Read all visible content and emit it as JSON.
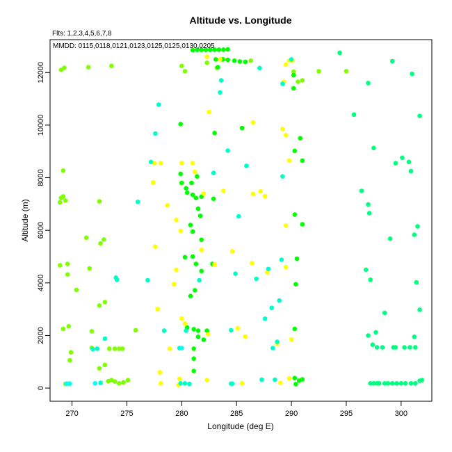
{
  "chart_data": {
    "type": "scatter",
    "title": "Altitude vs. Longitude",
    "xlabel": "Longitude (deg E)",
    "ylabel": "Altitude (m)",
    "xlim": [
      268,
      302.8
    ],
    "ylim": [
      -500,
      13250
    ],
    "xticks": [
      270,
      275,
      280,
      285,
      290,
      295,
      300
    ],
    "yticks": [
      0,
      2000,
      4000,
      6000,
      8000,
      10000,
      12000
    ],
    "grid": false,
    "annotations": [
      "Flts: 1,2,3,4,5,6,7,8",
      "MMDD: 0115,0118,0121,0123,0125,0125,0130,0205"
    ],
    "colors": {
      "yellow": "#FFFF00",
      "lime": "#80FF00",
      "green": "#00FF00",
      "spring": "#00FF80",
      "cyan": "#00FFC8",
      "aqua": "#00FFFF"
    },
    "series": [
      {
        "color": "lime",
        "points": [
          [
            269.0,
            12100
          ],
          [
            269.3,
            12180
          ],
          [
            271.5,
            12200
          ],
          [
            273.6,
            12250
          ],
          [
            269.2,
            8270
          ],
          [
            269.0,
            7230
          ],
          [
            269.2,
            7290
          ],
          [
            268.9,
            7060
          ],
          [
            269.4,
            7130
          ],
          [
            272.5,
            7100
          ],
          [
            271.3,
            5720
          ],
          [
            272.6,
            5500
          ],
          [
            272.9,
            5650
          ],
          [
            268.9,
            4670
          ],
          [
            269.6,
            4720
          ],
          [
            269.6,
            4320
          ],
          [
            270.4,
            3730
          ],
          [
            271.6,
            4550
          ],
          [
            272.5,
            3140
          ],
          [
            273.0,
            3270
          ],
          [
            269.2,
            2250
          ],
          [
            269.7,
            2350
          ],
          [
            271.8,
            2160
          ],
          [
            271.8,
            1530
          ],
          [
            269.9,
            1360
          ],
          [
            269.8,
            1060
          ],
          [
            269.4,
            160
          ],
          [
            269.7,
            170
          ],
          [
            272.5,
            750
          ],
          [
            273.0,
            880
          ],
          [
            273.3,
            260
          ],
          [
            273.6,
            300
          ],
          [
            273.9,
            250
          ],
          [
            274.3,
            180
          ],
          [
            274.7,
            220
          ],
          [
            275.1,
            300
          ],
          [
            273.4,
            1500
          ],
          [
            273.9,
            1500
          ],
          [
            274.3,
            1500
          ],
          [
            274.6,
            1500
          ],
          [
            275.8,
            2200
          ],
          [
            280.0,
            12250
          ],
          [
            280.3,
            12050
          ],
          [
            282.3,
            12370
          ],
          [
            283.8,
            12500
          ],
          [
            283.2,
            12180
          ],
          [
            286.3,
            12450
          ],
          [
            290.2,
            12030
          ],
          [
            290.6,
            11650
          ],
          [
            291.0,
            11700
          ],
          [
            292.5,
            12050
          ],
          [
            295.0,
            12050
          ]
        ]
      },
      {
        "color": "green",
        "points": [
          [
            281.0,
            12850
          ],
          [
            281.4,
            12860
          ],
          [
            281.8,
            12860
          ],
          [
            282.2,
            12860
          ],
          [
            282.6,
            12860
          ],
          [
            283.0,
            12870
          ],
          [
            283.4,
            12870
          ],
          [
            283.8,
            12870
          ],
          [
            284.2,
            12880
          ],
          [
            283.1,
            12500
          ],
          [
            283.7,
            12500
          ],
          [
            284.2,
            12480
          ],
          [
            284.8,
            12450
          ],
          [
            285.3,
            12420
          ],
          [
            285.8,
            12400
          ],
          [
            283.3,
            12200
          ],
          [
            290.2,
            11900
          ],
          [
            290.2,
            11400
          ],
          [
            279.9,
            10040
          ],
          [
            283.0,
            9700
          ],
          [
            285.5,
            9890
          ],
          [
            290.3,
            9020
          ],
          [
            290.8,
            9500
          ],
          [
            291.0,
            8650
          ],
          [
            279.9,
            8150
          ],
          [
            281.4,
            8050
          ],
          [
            280.0,
            7800
          ],
          [
            280.4,
            7600
          ],
          [
            280.9,
            7800
          ],
          [
            280.5,
            7430
          ],
          [
            281.0,
            7350
          ],
          [
            281.3,
            7230
          ],
          [
            281.8,
            7280
          ],
          [
            282.9,
            7200
          ],
          [
            281.5,
            6820
          ],
          [
            281.7,
            6550
          ],
          [
            280.8,
            6200
          ],
          [
            281.0,
            5950
          ],
          [
            281.8,
            5640
          ],
          [
            290.3,
            6600
          ],
          [
            291.0,
            6230
          ],
          [
            280.3,
            4980
          ],
          [
            281.0,
            5000
          ],
          [
            281.3,
            4720
          ],
          [
            281.8,
            4450
          ],
          [
            282.8,
            4720
          ],
          [
            290.4,
            3950
          ],
          [
            290.5,
            4920
          ],
          [
            280.8,
            3500
          ],
          [
            281.2,
            3720
          ],
          [
            280.5,
            2300
          ],
          [
            281.1,
            2240
          ],
          [
            281.5,
            2180
          ],
          [
            282.3,
            2180
          ],
          [
            281.5,
            1950
          ],
          [
            282.0,
            1840
          ],
          [
            281.1,
            1500
          ],
          [
            281.1,
            1120
          ],
          [
            281.1,
            650
          ],
          [
            290.3,
            2250
          ],
          [
            290.3,
            380
          ],
          [
            290.4,
            150
          ],
          [
            290.7,
            280
          ],
          [
            291.0,
            330
          ]
        ]
      },
      {
        "color": "yellow",
        "points": [
          [
            282.3,
            12600
          ],
          [
            283.5,
            12500
          ],
          [
            289.8,
            12450
          ],
          [
            290.1,
            12450
          ],
          [
            289.5,
            12300
          ],
          [
            289.3,
            11650
          ],
          [
            282.5,
            10500
          ],
          [
            286.5,
            10100
          ],
          [
            289.2,
            9850
          ],
          [
            289.5,
            9620
          ],
          [
            289.8,
            8650
          ],
          [
            277.5,
            8550
          ],
          [
            278.1,
            8550
          ],
          [
            280.0,
            8550
          ],
          [
            281.0,
            8550
          ],
          [
            281.2,
            8220
          ],
          [
            277.4,
            7820
          ],
          [
            282.0,
            7400
          ],
          [
            283.8,
            7500
          ],
          [
            286.5,
            7380
          ],
          [
            287.2,
            7480
          ],
          [
            287.6,
            7300
          ],
          [
            278.7,
            6950
          ],
          [
            279.5,
            6400
          ],
          [
            279.9,
            5980
          ],
          [
            289.5,
            6180
          ],
          [
            277.6,
            5380
          ],
          [
            281.8,
            5250
          ],
          [
            284.6,
            5200
          ],
          [
            279.5,
            4500
          ],
          [
            283.0,
            4700
          ],
          [
            286.4,
            4750
          ],
          [
            287.8,
            4400
          ],
          [
            289.5,
            4600
          ],
          [
            279.3,
            3950
          ],
          [
            277.8,
            3000
          ],
          [
            280.0,
            2650
          ],
          [
            280.3,
            2450
          ],
          [
            282.4,
            2050
          ],
          [
            285.1,
            2280
          ],
          [
            285.8,
            1960
          ],
          [
            288.7,
            1680
          ],
          [
            290.0,
            1850
          ],
          [
            278.9,
            1500
          ],
          [
            278.0,
            600
          ],
          [
            279.8,
            350
          ],
          [
            282.3,
            300
          ],
          [
            278.1,
            180
          ],
          [
            279.7,
            120
          ],
          [
            285.5,
            180
          ],
          [
            289.0,
            200
          ],
          [
            289.8,
            370
          ]
        ]
      },
      {
        "color": "spring",
        "points": [
          [
            297.0,
            11600
          ],
          [
            295.7,
            10400
          ],
          [
            297.5,
            9130
          ],
          [
            301.7,
            10350
          ],
          [
            299.5,
            8550
          ],
          [
            300.1,
            8760
          ],
          [
            300.7,
            8600
          ],
          [
            300.9,
            8250
          ],
          [
            296.4,
            7500
          ],
          [
            297.0,
            6980
          ],
          [
            297.1,
            6650
          ],
          [
            299.0,
            5680
          ],
          [
            301.2,
            5830
          ],
          [
            301.5,
            6150
          ],
          [
            296.8,
            4500
          ],
          [
            297.2,
            4120
          ],
          [
            301.4,
            4020
          ],
          [
            298.5,
            2860
          ],
          [
            297.0,
            2000
          ],
          [
            297.7,
            2120
          ],
          [
            301.7,
            2980
          ],
          [
            297.4,
            1650
          ],
          [
            297.8,
            1550
          ],
          [
            298.3,
            1550
          ],
          [
            299.3,
            1550
          ],
          [
            299.5,
            1550
          ],
          [
            300.3,
            1550
          ],
          [
            300.8,
            1550
          ],
          [
            301.3,
            1550
          ],
          [
            301.2,
            1950
          ],
          [
            297.2,
            180
          ],
          [
            297.5,
            180
          ],
          [
            297.8,
            180
          ],
          [
            298.0,
            180
          ],
          [
            298.5,
            180
          ],
          [
            298.8,
            180
          ],
          [
            299.2,
            180
          ],
          [
            299.6,
            180
          ],
          [
            300.0,
            180
          ],
          [
            300.4,
            180
          ],
          [
            300.9,
            180
          ],
          [
            301.3,
            180
          ],
          [
            301.7,
            280
          ],
          [
            301.9,
            300
          ],
          [
            299.2,
            12430
          ],
          [
            294.4,
            12750
          ],
          [
            301.0,
            11950
          ]
        ]
      },
      {
        "color": "cyan",
        "points": [
          [
            271.9,
            1480
          ],
          [
            272.3,
            1500
          ],
          [
            273.0,
            1880
          ],
          [
            274.0,
            4200
          ],
          [
            274.1,
            4120
          ],
          [
            272.1,
            180
          ],
          [
            272.6,
            200
          ],
          [
            276.0,
            7080
          ],
          [
            276.9,
            4100
          ],
          [
            277.2,
            8600
          ],
          [
            277.6,
            9680
          ],
          [
            277.9,
            10780
          ],
          [
            278.4,
            2180
          ],
          [
            279.8,
            1520
          ],
          [
            280.4,
            2180
          ],
          [
            280.7,
            160
          ],
          [
            280.3,
            180
          ],
          [
            279.9,
            180
          ],
          [
            281.6,
            4100
          ],
          [
            282.9,
            8180
          ],
          [
            283.5,
            11240
          ],
          [
            283.6,
            11700
          ],
          [
            284.2,
            9030
          ],
          [
            284.5,
            2200
          ],
          [
            284.9,
            4350
          ],
          [
            285.2,
            6530
          ],
          [
            285.9,
            8450
          ],
          [
            286.8,
            4150
          ],
          [
            287.1,
            12170
          ],
          [
            287.3,
            320
          ],
          [
            287.6,
            2640
          ],
          [
            287.9,
            4530
          ],
          [
            288.2,
            3050
          ],
          [
            288.3,
            1520
          ],
          [
            288.5,
            320
          ],
          [
            288.7,
            1760
          ],
          [
            288.9,
            3330
          ],
          [
            289.1,
            4880
          ],
          [
            289.2,
            8050
          ],
          [
            289.2,
            11570
          ],
          [
            290.0,
            12500
          ],
          [
            284.6,
            170
          ],
          [
            284.5,
            170
          ]
        ]
      },
      {
        "color": "aqua",
        "points": [
          [
            269.5,
            170
          ],
          [
            269.8,
            170
          ],
          [
            272.1,
            180
          ],
          [
            280.0,
            1520
          ]
        ]
      }
    ]
  }
}
